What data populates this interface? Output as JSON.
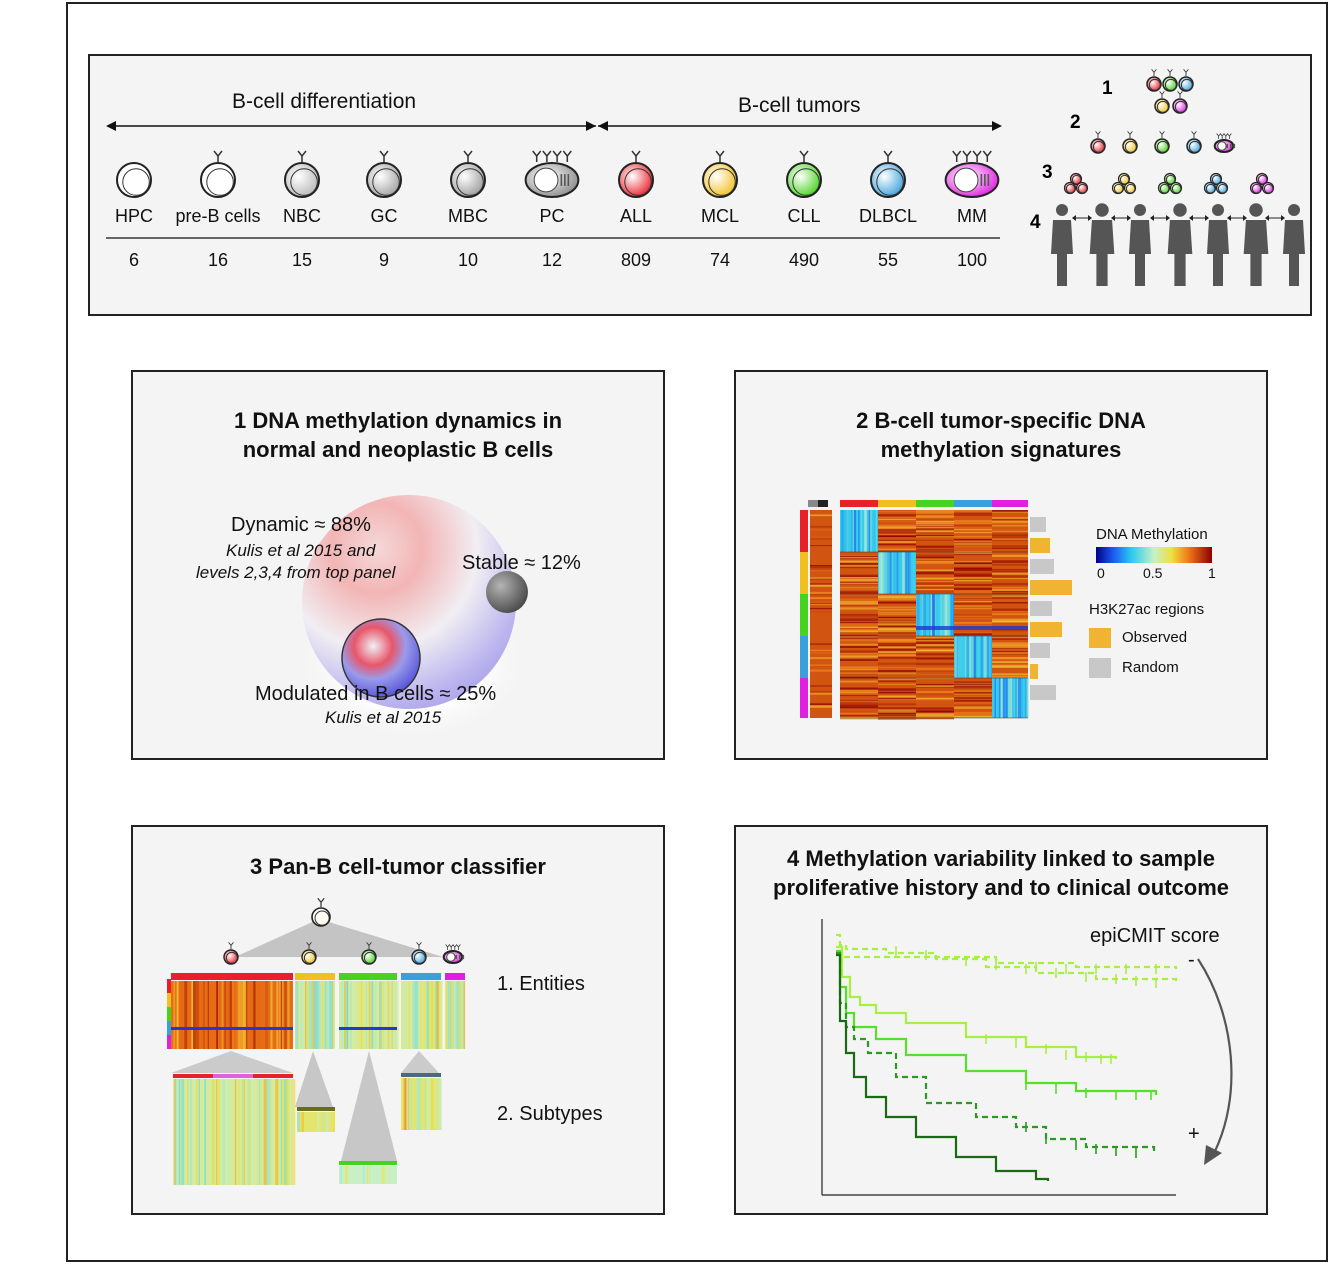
{
  "top": {
    "diff_label": "B-cell differentiation",
    "tumor_label": "B-cell tumors",
    "cells": [
      {
        "name": "HPC",
        "count": "6"
      },
      {
        "name": "pre-B cells",
        "count": "16"
      },
      {
        "name": "NBC",
        "count": "15"
      },
      {
        "name": "GC",
        "count": "9"
      },
      {
        "name": "MBC",
        "count": "10"
      },
      {
        "name": "PC",
        "count": "12"
      },
      {
        "name": "ALL",
        "count": "809"
      },
      {
        "name": "MCL",
        "count": "74"
      },
      {
        "name": "CLL",
        "count": "490"
      },
      {
        "name": "DLBCL",
        "count": "55"
      },
      {
        "name": "MM",
        "count": "100"
      }
    ],
    "levels": [
      "1",
      "2",
      "3",
      "4"
    ]
  },
  "panel1": {
    "title_line1": "1 DNA methylation dynamics in",
    "title_line2": "normal and neoplastic B cells",
    "dynamic": "Dynamic ≈ 88%",
    "dynamic_ref1": "Kulis et al 2015 and",
    "dynamic_ref2": "levels 2,3,4 from top panel",
    "stable": "Stable ≈ 12%",
    "modulated": "Modulated in B cells ≈  25%",
    "modulated_ref": "Kulis et al 2015"
  },
  "panel2": {
    "title_line1": "2 B-cell tumor-specific DNA",
    "title_line2": "methylation signatures",
    "legend_title": "DNA Methylation",
    "tick_0": "0",
    "tick_05": "0.5",
    "tick_1": "1",
    "h3k27_title": "H3K27ac regions",
    "observed": "Observed",
    "random": "Random"
  },
  "panel3": {
    "title": "3 Pan-B cell-tumor classifier",
    "entities": "1. Entities",
    "subtypes": "2. Subtypes"
  },
  "panel4": {
    "title_line1": "4 Methylation variability linked to sample",
    "title_line2": "proliferative history and to clinical outcome",
    "score_label": "epiCMIT score",
    "minus": "-",
    "plus": "+"
  },
  "colors": {
    "ALL": "#e8202a",
    "MCL": "#f0c020",
    "CLL": "#46d21e",
    "DLBCL": "#3aa0dc",
    "MM": "#e020e0",
    "observed": "#f0b432",
    "random": "#c8c8c8",
    "km_light": "#a8f040",
    "km_mid": "#56e02a",
    "km_dark": "#2a9a20",
    "km_darkest": "#1a6a14"
  }
}
